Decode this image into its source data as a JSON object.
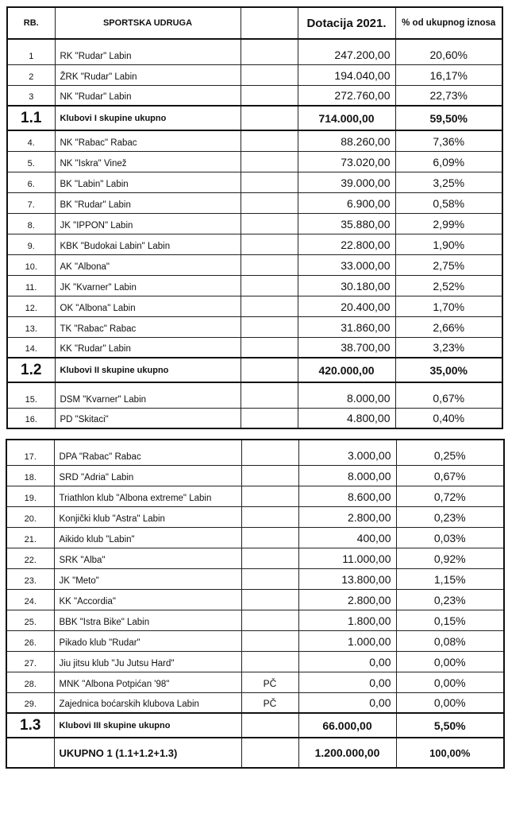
{
  "header": {
    "rb": "RB.",
    "name": "SPORTSKA UDRUGA",
    "amount": "Dotacija 2021.",
    "pct": "% od ukupnog iznosa"
  },
  "table1": {
    "rows": [
      {
        "rb": "1",
        "name": "RK  \"Rudar\" Labin",
        "note": "",
        "amount": "247.200,00",
        "pct": "20,60%"
      },
      {
        "rb": "2",
        "name": "ŽRK \"Rudar\" Labin",
        "note": "",
        "amount": "194.040,00",
        "pct": "16,17%"
      },
      {
        "rb": "3",
        "name": "NK \"Rudar\" Labin",
        "note": "",
        "amount": "272.760,00",
        "pct": "22,73%"
      }
    ],
    "sum1": {
      "rb": "1.1",
      "name": "Klubovi I skupine ukupno",
      "amount": "714.000,00",
      "pct": "59,50%"
    },
    "rows2": [
      {
        "rb": "4.",
        "name": "NK \"Rabac\" Rabac",
        "note": "",
        "amount": "88.260,00",
        "pct": "7,36%"
      },
      {
        "rb": "5.",
        "name": "NK \"Iskra\" Vinež",
        "note": "",
        "amount": "73.020,00",
        "pct": "6,09%"
      },
      {
        "rb": "6.",
        "name": "BK \"Labin\" Labin",
        "note": "",
        "amount": "39.000,00",
        "pct": "3,25%"
      },
      {
        "rb": "7.",
        "name": "BK \"Rudar\" Labin",
        "note": "",
        "amount": "6.900,00",
        "pct": "0,58%"
      },
      {
        "rb": "8.",
        "name": "JK \"IPPON\" Labin",
        "note": "",
        "amount": "35.880,00",
        "pct": "2,99%"
      },
      {
        "rb": "9.",
        "name": "KBK \"Budokai Labin\" Labin",
        "note": "",
        "amount": "22.800,00",
        "pct": "1,90%"
      },
      {
        "rb": "10.",
        "name": "AK \"Albona\"",
        "note": "",
        "amount": "33.000,00",
        "pct": "2,75%"
      },
      {
        "rb": "11.",
        "name": "JK \"Kvarner\" Labin",
        "note": "",
        "amount": "30.180,00",
        "pct": "2,52%"
      },
      {
        "rb": "12.",
        "name": "OK \"Albona\" Labin",
        "note": "",
        "amount": "20.400,00",
        "pct": "1,70%"
      },
      {
        "rb": "13.",
        "name": "TK \"Rabac\" Rabac",
        "note": "",
        "amount": "31.860,00",
        "pct": "2,66%"
      },
      {
        "rb": "14.",
        "name": "KK \"Rudar\" Labin",
        "note": "",
        "amount": "38.700,00",
        "pct": "3,23%"
      }
    ],
    "sum2": {
      "rb": "1.2",
      "name": "Klubovi II skupine ukupno",
      "amount": "420.000,00",
      "pct": "35,00%"
    },
    "rows3": [
      {
        "rb": "15.",
        "name": "DSM \"Kvarner\" Labin",
        "note": "",
        "amount": "8.000,00",
        "pct": "0,67%"
      },
      {
        "rb": "16.",
        "name": "PD \"Skitaci\"",
        "note": "",
        "amount": "4.800,00",
        "pct": "0,40%"
      }
    ]
  },
  "table2": {
    "rows": [
      {
        "rb": "17.",
        "name": "DPA \"Rabac\" Rabac",
        "note": "",
        "amount": "3.000,00",
        "pct": "0,25%"
      },
      {
        "rb": "18.",
        "name": "SRD \"Adria\" Labin",
        "note": "",
        "amount": "8.000,00",
        "pct": "0,67%"
      },
      {
        "rb": "19.",
        "name": "Triathlon klub \"Albona extreme\" Labin",
        "note": "",
        "amount": "8.600,00",
        "pct": "0,72%"
      },
      {
        "rb": "20.",
        "name": "Konjički klub \"Astra\" Labin",
        "note": "",
        "amount": "2.800,00",
        "pct": "0,23%"
      },
      {
        "rb": "21.",
        "name": "Aikido klub \"Labin\"",
        "note": "",
        "amount": "400,00",
        "pct": "0,03%"
      },
      {
        "rb": "22.",
        "name": "SRK \"Alba\"",
        "note": "",
        "amount": "11.000,00",
        "pct": "0,92%"
      },
      {
        "rb": "23.",
        "name": "JK \"Meto\"",
        "note": "",
        "amount": "13.800,00",
        "pct": "1,15%"
      },
      {
        "rb": "24.",
        "name": "KK \"Accordia\"",
        "note": "",
        "amount": "2.800,00",
        "pct": "0,23%"
      },
      {
        "rb": "25.",
        "name": "BBK \"Istra Bike\" Labin",
        "note": "",
        "amount": "1.800,00",
        "pct": "0,15%"
      },
      {
        "rb": "26.",
        "name": "Pikado klub \"Rudar\"",
        "note": "",
        "amount": "1.000,00",
        "pct": "0,08%"
      },
      {
        "rb": "27.",
        "name": "Jiu jitsu klub \"Ju Jutsu Hard\"",
        "note": "",
        "amount": "0,00",
        "pct": "0,00%"
      },
      {
        "rb": "28.",
        "name": "MNK \"Albona Potpićan '98\"",
        "note": "PČ",
        "amount": "0,00",
        "pct": "0,00%"
      },
      {
        "rb": "29.",
        "name": "Zajednica boćarskih klubova Labin",
        "note": "PČ",
        "amount": "0,00",
        "pct": "0,00%"
      }
    ],
    "sum3": {
      "rb": "1.3",
      "name": "Klubovi III skupine ukupno",
      "amount": "66.000,00",
      "pct": "5,50%"
    },
    "total": {
      "rb": "",
      "name": "UKUPNO 1 (1.1+1.2+1.3)",
      "amount": "1.200.000,00",
      "pct": "100,00%"
    }
  }
}
